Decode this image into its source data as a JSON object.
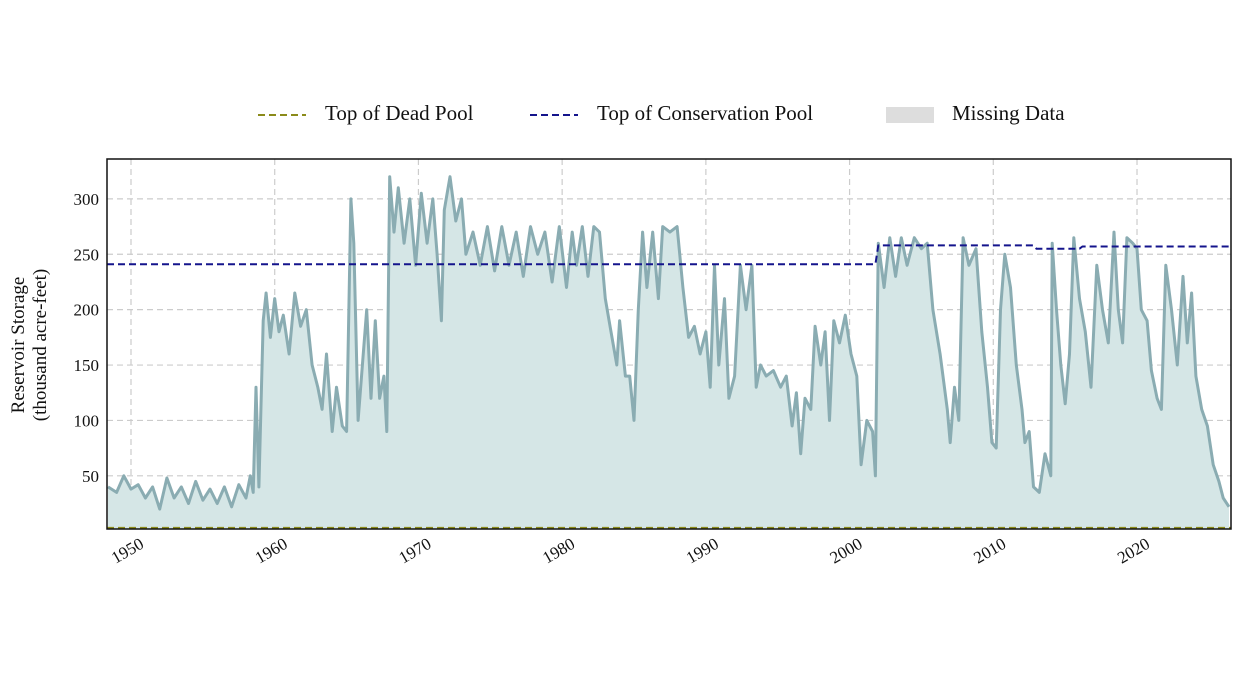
{
  "chart_data": {
    "type": "line",
    "y_label": [
      "Reservoir Storage",
      "(thousand acre-feet)"
    ],
    "xlim": [
      1948.33,
      2026.54
    ],
    "xticks": [
      1950,
      1960,
      1970,
      1980,
      1990,
      2000,
      2010,
      2020
    ],
    "ylim": [
      2,
      336
    ],
    "yticks": [
      50,
      100,
      150,
      200,
      250,
      300
    ],
    "grid": true,
    "legend_position": "top",
    "missing_data": {
      "name": "Missing Data",
      "color": "#dddddd"
    },
    "series": [
      {
        "name": "Top of Dead Pool",
        "color": "#8b8b1a",
        "dashed": true,
        "x": [
          1948.33,
          2026.54
        ],
        "values": [
          3,
          3
        ]
      },
      {
        "name": "Top of Conservation Pool",
        "color": "#14148c",
        "dashed": true,
        "x": [
          1948.33,
          2001.8,
          2002,
          2012.8,
          2013,
          2016,
          2016.2,
          2026.54
        ],
        "values": [
          241,
          241,
          258,
          258,
          255,
          255,
          257,
          257
        ]
      },
      {
        "color": "#8aacb2",
        "fill": "#d5e6e6",
        "area": true,
        "x": [
          1948.4,
          1949,
          1949.5,
          1950,
          1950.5,
          1951,
          1951.5,
          1952,
          1952.5,
          1953,
          1953.5,
          1954,
          1954.5,
          1955,
          1955.5,
          1956,
          1956.5,
          1957,
          1957.5,
          1958,
          1958.3,
          1958.5,
          1958.7,
          1958.9,
          1959.2,
          1959.4,
          1959.7,
          1960,
          1960.3,
          1960.6,
          1961,
          1961.4,
          1961.8,
          1962.2,
          1962.6,
          1963,
          1963.3,
          1963.6,
          1964,
          1964.3,
          1964.7,
          1965,
          1965.3,
          1965.5,
          1965.8,
          1966.1,
          1966.4,
          1966.7,
          1967,
          1967.3,
          1967.6,
          1967.8,
          1968,
          1968.3,
          1968.6,
          1969,
          1969.4,
          1969.8,
          1970.2,
          1970.6,
          1971,
          1971.3,
          1971.6,
          1971.8,
          1972.2,
          1972.6,
          1973,
          1973.3,
          1973.8,
          1974.3,
          1974.8,
          1975.3,
          1975.8,
          1976.3,
          1976.8,
          1977.3,
          1977.8,
          1978.3,
          1978.8,
          1979.3,
          1979.8,
          1980.3,
          1980.7,
          1981,
          1981.4,
          1981.8,
          1982.2,
          1982.6,
          1983,
          1983.4,
          1983.8,
          1984,
          1984.4,
          1984.7,
          1985,
          1985.3,
          1985.6,
          1985.9,
          1986.3,
          1986.7,
          1987,
          1987.5,
          1988,
          1988.4,
          1988.8,
          1989.2,
          1989.6,
          1990,
          1990.3,
          1990.6,
          1990.9,
          1991.3,
          1991.6,
          1992,
          1992.4,
          1992.8,
          1993.2,
          1993.5,
          1993.8,
          1994.2,
          1994.7,
          1995.2,
          1995.6,
          1996,
          1996.3,
          1996.6,
          1996.9,
          1997.3,
          1997.6,
          1998,
          1998.3,
          1998.6,
          1998.9,
          1999.3,
          1999.7,
          2000.1,
          2000.5,
          2000.8,
          2001.2,
          2001.6,
          2001.8,
          2002,
          2002.4,
          2002.8,
          2003.2,
          2003.6,
          2004,
          2004.5,
          2005,
          2005.4,
          2005.8,
          2006.3,
          2006.8,
          2007,
          2007.3,
          2007.6,
          2007.9,
          2008.3,
          2008.8,
          2009.2,
          2009.6,
          2009.9,
          2010.2,
          2010.5,
          2010.8,
          2011.2,
          2011.6,
          2012,
          2012.2,
          2012.5,
          2012.8,
          2013.2,
          2013.6,
          2014,
          2014.1,
          2014.4,
          2014.7,
          2015,
          2015.3,
          2015.6,
          2016,
          2016.4,
          2016.8,
          2017.2,
          2017.6,
          2018,
          2018.4,
          2018.7,
          2019,
          2019.3,
          2019.7,
          2020,
          2020.3,
          2020.7,
          2021,
          2021.4,
          2021.7,
          2022,
          2022.4,
          2022.8,
          2023.2,
          2023.5,
          2023.8,
          2024.1,
          2024.5,
          2024.9,
          2025.3,
          2025.7,
          2026,
          2026.4
        ],
        "values": [
          40,
          35,
          50,
          38,
          42,
          30,
          40,
          20,
          48,
          30,
          40,
          25,
          45,
          28,
          38,
          25,
          40,
          22,
          42,
          30,
          50,
          35,
          130,
          40,
          190,
          215,
          175,
          210,
          180,
          195,
          160,
          215,
          185,
          200,
          150,
          130,
          110,
          160,
          90,
          130,
          95,
          90,
          300,
          260,
          100,
          150,
          200,
          120,
          190,
          120,
          140,
          90,
          320,
          270,
          310,
          260,
          300,
          240,
          305,
          260,
          300,
          250,
          190,
          290,
          320,
          280,
          300,
          250,
          270,
          240,
          275,
          235,
          275,
          240,
          270,
          230,
          275,
          250,
          270,
          225,
          275,
          220,
          270,
          240,
          275,
          230,
          275,
          270,
          210,
          180,
          150,
          190,
          140,
          140,
          100,
          200,
          270,
          220,
          270,
          210,
          275,
          270,
          275,
          220,
          175,
          185,
          160,
          180,
          130,
          240,
          150,
          210,
          120,
          140,
          240,
          200,
          240,
          130,
          150,
          140,
          145,
          130,
          140,
          95,
          125,
          70,
          120,
          110,
          185,
          150,
          180,
          100,
          190,
          170,
          195,
          160,
          140,
          60,
          100,
          90,
          50,
          260,
          220,
          265,
          230,
          265,
          240,
          265,
          255,
          260,
          200,
          160,
          110,
          80,
          130,
          100,
          265,
          240,
          255,
          180,
          130,
          80,
          75,
          200,
          250,
          220,
          150,
          110,
          80,
          90,
          40,
          35,
          70,
          50,
          260,
          200,
          150,
          115,
          160,
          265,
          210,
          180,
          130,
          240,
          200,
          170,
          270,
          200,
          170,
          265,
          260,
          255,
          200,
          190,
          145,
          120,
          110,
          240,
          200,
          150,
          230,
          170,
          215,
          140,
          110,
          95,
          60,
          45,
          30,
          22
        ]
      }
    ]
  }
}
